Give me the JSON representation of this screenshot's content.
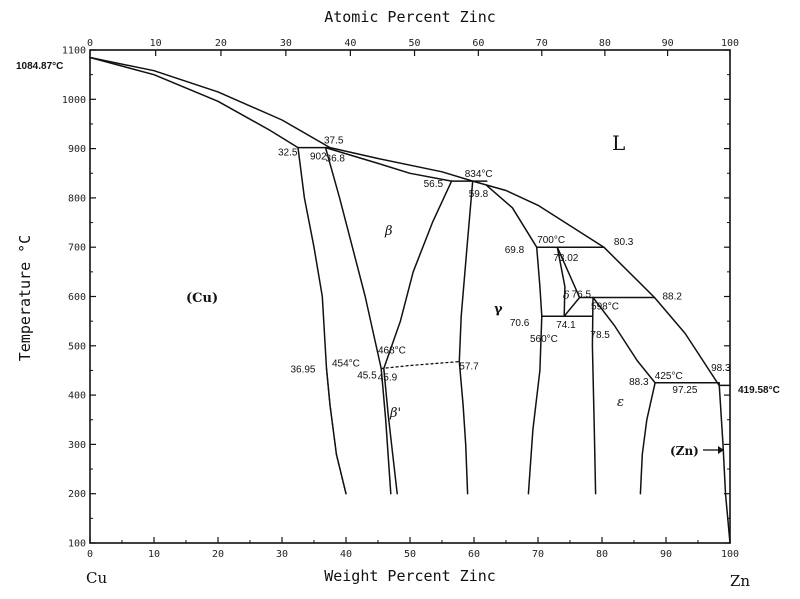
{
  "chart_data": {
    "type": "line",
    "title": "",
    "xlabel": "Weight Percent Zinc",
    "x2label": "Atomic Percent Zinc",
    "ylabel": "Temperature °C",
    "xlim": [
      0,
      100
    ],
    "ylim": [
      100,
      1100
    ],
    "grid": false,
    "xticks": [
      0,
      10,
      20,
      30,
      40,
      50,
      60,
      70,
      80,
      90,
      100
    ],
    "yticks": [
      100,
      200,
      300,
      400,
      500,
      600,
      700,
      800,
      900,
      1000,
      1100
    ],
    "x2ticks": [
      0,
      10,
      20,
      30,
      40,
      50,
      60,
      70,
      80,
      90,
      100
    ],
    "left_element": "Cu",
    "right_element": "Zn",
    "cu_melting_label": "1084.87°C",
    "zn_melting_label": "419.58°C",
    "phase_labels": {
      "liquid": "L",
      "cu": "(Cu)",
      "beta": "β",
      "beta_prime": "β'",
      "gamma": "γ",
      "delta": "δ",
      "epsilon": "ε",
      "zn": "(Zn)"
    },
    "annotations": [
      {
        "text": "37.5",
        "x": 37.5,
        "y": 902
      },
      {
        "text": "32.5",
        "x": 32.5,
        "y": 902
      },
      {
        "text": "902",
        "x": 35,
        "y": 902
      },
      {
        "text": "36.8",
        "x": 36.8,
        "y": 902
      },
      {
        "text": "834°C",
        "x": 59.8,
        "y": 834
      },
      {
        "text": "56.5",
        "x": 56.5,
        "y": 834
      },
      {
        "text": "59.8",
        "x": 59.8,
        "y": 834
      },
      {
        "text": "700°C",
        "x": 73,
        "y": 700
      },
      {
        "text": "69.8",
        "x": 69.8,
        "y": 700
      },
      {
        "text": "73.02",
        "x": 73.02,
        "y": 700
      },
      {
        "text": "80.3",
        "x": 80.3,
        "y": 700
      },
      {
        "text": "76.5",
        "x": 76.5,
        "y": 598
      },
      {
        "text": "598°C",
        "x": 78.6,
        "y": 598
      },
      {
        "text": "88.2",
        "x": 88.2,
        "y": 598
      },
      {
        "text": "70.6",
        "x": 70.6,
        "y": 560
      },
      {
        "text": "74.1",
        "x": 74.1,
        "y": 560
      },
      {
        "text": "78.5",
        "x": 78.5,
        "y": 560
      },
      {
        "text": "560°C",
        "x": 72.5,
        "y": 560
      },
      {
        "text": "36.95",
        "x": 36.95,
        "y": 454
      },
      {
        "text": "454°C",
        "x": 42.5,
        "y": 454
      },
      {
        "text": "45.5",
        "x": 45.5,
        "y": 454
      },
      {
        "text": "468°C",
        "x": 50,
        "y": 468
      },
      {
        "text": "45.9",
        "x": 45.9,
        "y": 454
      },
      {
        "text": "57.7",
        "x": 57.7,
        "y": 468
      },
      {
        "text": "425°C",
        "x": 92,
        "y": 425
      },
      {
        "text": "88.3",
        "x": 88.3,
        "y": 425
      },
      {
        "text": "97.25",
        "x": 97.25,
        "y": 425
      },
      {
        "text": "98.3",
        "x": 98.3,
        "y": 425
      }
    ],
    "series": [
      {
        "style": "solid",
        "points": [
          [
            0,
            1084.87
          ],
          [
            10,
            1058
          ],
          [
            20,
            1015
          ],
          [
            30,
            958
          ],
          [
            37.5,
            902
          ],
          [
            45,
            880
          ],
          [
            55,
            853
          ],
          [
            59.8,
            834
          ],
          [
            65,
            815
          ],
          [
            70,
            785
          ],
          [
            80.3,
            700
          ],
          [
            88.2,
            598
          ],
          [
            93,
            525
          ],
          [
            98.3,
            419.58
          ],
          [
            100,
            419.58
          ]
        ]
      },
      {
        "style": "solid",
        "points": [
          [
            0,
            1084.87
          ],
          [
            10,
            1050
          ],
          [
            20,
            996
          ],
          [
            28,
            938
          ],
          [
            32.5,
            902
          ]
        ]
      },
      {
        "style": "solid",
        "points": [
          [
            32.5,
            902
          ],
          [
            37.5,
            902
          ]
        ]
      },
      {
        "style": "solid",
        "points": [
          [
            36.8,
            902
          ],
          [
            45,
            870
          ],
          [
            50,
            850
          ],
          [
            56.5,
            834
          ]
        ]
      },
      {
        "style": "solid",
        "points": [
          [
            56.5,
            834
          ],
          [
            62,
            834
          ]
        ]
      },
      {
        "style": "solid",
        "points": [
          [
            32.5,
            902
          ],
          [
            33.5,
            800
          ],
          [
            35,
            700
          ],
          [
            36.3,
            600
          ],
          [
            36.95,
            454
          ],
          [
            37.5,
            380
          ],
          [
            38.5,
            280
          ],
          [
            40,
            200
          ]
        ]
      },
      {
        "style": "dashed",
        "points": [
          [
            36.95,
            454
          ],
          [
            37.5,
            380
          ],
          [
            38.5,
            280
          ],
          [
            40,
            200
          ]
        ]
      },
      {
        "style": "solid",
        "points": [
          [
            36.8,
            902
          ],
          [
            39,
            800
          ],
          [
            41,
            700
          ],
          [
            43,
            600
          ],
          [
            45.5,
            454
          ],
          [
            46.2,
            350
          ],
          [
            47,
            200
          ]
        ]
      },
      {
        "style": "solid",
        "points": [
          [
            56.5,
            834
          ],
          [
            53.5,
            750
          ],
          [
            50.5,
            650
          ],
          [
            48.5,
            550
          ],
          [
            45.9,
            454
          ],
          [
            46.6,
            360
          ],
          [
            48,
            200
          ]
        ]
      },
      {
        "style": "solid",
        "points": [
          [
            59.8,
            834
          ],
          [
            58.9,
            700
          ],
          [
            58,
            560
          ],
          [
            57.7,
            468
          ],
          [
            58.3,
            380
          ],
          [
            58.7,
            300
          ],
          [
            59,
            200
          ]
        ]
      },
      {
        "style": "dashed",
        "points": [
          [
            45.5,
            454
          ],
          [
            50,
            460
          ],
          [
            57.7,
            468
          ]
        ]
      },
      {
        "style": "solid",
        "points": [
          [
            62,
            825
          ],
          [
            66,
            780
          ],
          [
            69.8,
            700
          ],
          [
            70.3,
            620
          ],
          [
            70.6,
            560
          ],
          [
            70.3,
            450
          ],
          [
            69.2,
            330
          ],
          [
            68.5,
            200
          ]
        ]
      },
      {
        "style": "solid",
        "points": [
          [
            69.8,
            700
          ],
          [
            80.3,
            700
          ]
        ]
      },
      {
        "style": "solid",
        "points": [
          [
            73.02,
            700
          ],
          [
            74.2,
            620
          ],
          [
            74.1,
            560
          ]
        ]
      },
      {
        "style": "solid",
        "points": [
          [
            73.02,
            700
          ],
          [
            76.5,
            598
          ]
        ]
      },
      {
        "style": "solid",
        "points": [
          [
            76.5,
            598
          ],
          [
            88.2,
            598
          ]
        ]
      },
      {
        "style": "solid",
        "points": [
          [
            70.6,
            560
          ],
          [
            78.5,
            560
          ]
        ]
      },
      {
        "style": "solid",
        "points": [
          [
            74.1,
            560
          ],
          [
            76.5,
            598
          ]
        ]
      },
      {
        "style": "solid",
        "points": [
          [
            78.6,
            598
          ],
          [
            78.5,
            500
          ],
          [
            78.8,
            330
          ],
          [
            79,
            200
          ]
        ]
      },
      {
        "style": "solid",
        "points": [
          [
            78.6,
            598
          ],
          [
            82,
            540
          ],
          [
            85.5,
            470
          ],
          [
            88.3,
            425
          ]
        ]
      },
      {
        "style": "solid",
        "points": [
          [
            88.3,
            425
          ],
          [
            98.3,
            425
          ]
        ]
      },
      {
        "style": "solid",
        "points": [
          [
            88.3,
            425
          ],
          [
            87,
            350
          ],
          [
            86.3,
            280
          ],
          [
            86,
            200
          ]
        ]
      },
      {
        "style": "solid",
        "points": [
          [
            98.3,
            425
          ],
          [
            98.9,
            300
          ],
          [
            99.3,
            200
          ],
          [
            100,
            100
          ]
        ]
      }
    ]
  }
}
